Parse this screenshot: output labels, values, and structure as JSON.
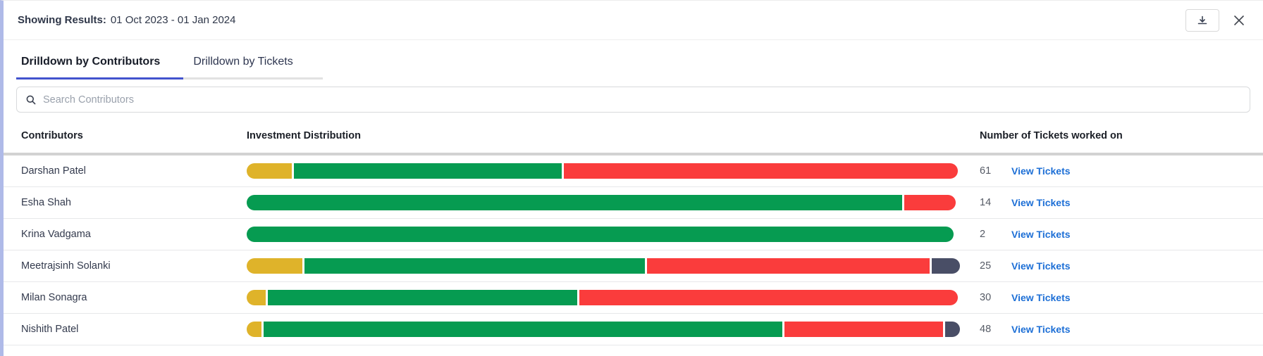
{
  "header": {
    "results_label": "Showing Results:",
    "results_value": "01 Oct 2023 - 01 Jan 2024"
  },
  "tabs": [
    {
      "label": "Drilldown by Contributors",
      "active": true
    },
    {
      "label": "Drilldown by Tickets",
      "active": false
    }
  ],
  "search": {
    "placeholder": "Search Contributors"
  },
  "table": {
    "columns": [
      "Contributors",
      "Investment Distribution",
      "Number of Tickets worked on"
    ],
    "view_tickets_label": "View Tickets",
    "rows": [
      {
        "name": "Darshan Patel",
        "tickets": "61",
        "segments": [
          {
            "color": "yellow",
            "pct": 6.4
          },
          {
            "color": "green",
            "pct": 37.9
          },
          {
            "color": "red",
            "pct": 55.7
          }
        ]
      },
      {
        "name": "Esha Shah",
        "tickets": "14",
        "segments": [
          {
            "color": "green",
            "pct": 92.7
          },
          {
            "color": "red",
            "pct": 7.3
          }
        ]
      },
      {
        "name": "Krina Vadgama",
        "tickets": "2",
        "segments": [
          {
            "color": "green",
            "pct": 100
          }
        ]
      },
      {
        "name": "Meetrajsinh Solanki",
        "tickets": "25",
        "segments": [
          {
            "color": "yellow",
            "pct": 7.9
          },
          {
            "color": "green",
            "pct": 48.1
          },
          {
            "color": "red",
            "pct": 40.0
          },
          {
            "color": "dark",
            "pct": 4.0
          }
        ]
      },
      {
        "name": "Milan Sonagra",
        "tickets": "30",
        "segments": [
          {
            "color": "yellow",
            "pct": 2.7
          },
          {
            "color": "green",
            "pct": 43.8
          },
          {
            "color": "red",
            "pct": 53.5
          }
        ]
      },
      {
        "name": "Nishith Patel",
        "tickets": "48",
        "segments": [
          {
            "color": "yellow",
            "pct": 2.1
          },
          {
            "color": "green",
            "pct": 73.4
          },
          {
            "color": "red",
            "pct": 22.4
          },
          {
            "color": "dark",
            "pct": 2.1
          }
        ]
      }
    ]
  },
  "colors": {
    "yellow": "#dfb32a",
    "green": "#069b51",
    "red": "#fa3c3c",
    "dark": "#494e66",
    "link_blue": "#1d6fd6",
    "tab_underline": "#4353ce",
    "left_stripe": "#afbae8"
  }
}
